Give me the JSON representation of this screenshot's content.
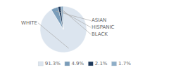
{
  "chart_data": {
    "type": "pie",
    "categories": [
      "WHITE",
      "ASIAN",
      "HISPANIC",
      "BLACK"
    ],
    "values": [
      91.3,
      4.9,
      2.1,
      1.7
    ],
    "value_labels": [
      "91.3%",
      "4.9%",
      "2.1%",
      "1.7%"
    ],
    "colors": [
      "#dce5ef",
      "#7a9dba",
      "#1e3a5c",
      "#8faec8"
    ],
    "legend": "bottom"
  }
}
